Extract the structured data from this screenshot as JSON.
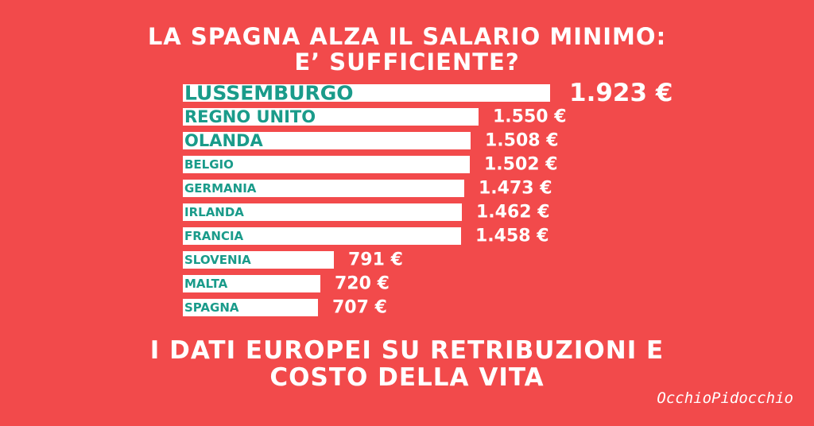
{
  "header": {
    "title_line1": "LA SPAGNA ALZA IL SALARIO MINIMO:",
    "title_line2": "E’ SUFFICIENTE?"
  },
  "footer": {
    "line1": "I DATI EUROPEI SU RETRIBUZIONI E",
    "line2": "COSTO DELLA VITA"
  },
  "logo": {
    "text": "OcchioPidocchio"
  },
  "colors": {
    "background": "#f24a4b",
    "bar": "#ffffff",
    "country_label": "#1a9b8a",
    "value_label": "#ffffff"
  },
  "chart_data": {
    "type": "bar",
    "orientation": "horizontal",
    "categories": [
      "LUSSEMBURGO",
      "REGNO UNITO",
      "OLANDA",
      "BELGIO",
      "GERMANIA",
      "IRLANDA",
      "FRANCIA",
      "SLOVENIA",
      "MALTA",
      "SPAGNA"
    ],
    "values": [
      1923,
      1550,
      1508,
      1502,
      1473,
      1462,
      1458,
      791,
      720,
      707
    ],
    "value_labels": [
      "1.923 €",
      "1.550 €",
      "1.508 €",
      "1.502 €",
      "1.473 €",
      "1.462 €",
      "1.458 €",
      "791 €",
      "720 €",
      "707 €"
    ],
    "title": "",
    "xlabel": "",
    "ylabel": "",
    "grid": false,
    "legend": "none"
  }
}
